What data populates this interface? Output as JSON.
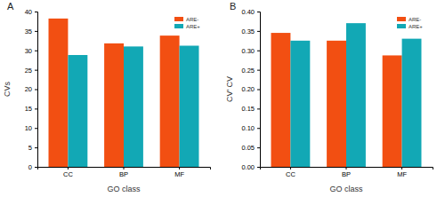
{
  "chart_data": [
    {
      "type": "bar",
      "title": "A",
      "x_label": "GO class",
      "y_label": "CVs",
      "categories": [
        "CC",
        "BP",
        "MF"
      ],
      "series": [
        {
          "name": "ARE-",
          "color": "#f24f12",
          "values": [
            38.2,
            31.8,
            33.8
          ]
        },
        {
          "name": "ARE+",
          "color": "#12a8b5",
          "values": [
            28.8,
            31.0,
            31.2
          ]
        }
      ],
      "ylim": [
        0,
        40
      ],
      "yticks": [
        0,
        5,
        10,
        15,
        20,
        25,
        30,
        35,
        40
      ],
      "legend": "upper right",
      "grid": false
    },
    {
      "type": "bar",
      "title": "B",
      "x_label": "GO class",
      "y_label": "CV' CV",
      "categories": [
        "CC",
        "BP",
        "MF"
      ],
      "series": [
        {
          "name": "ARE-",
          "color": "#f24f12",
          "values": [
            0.345,
            0.325,
            0.287
          ]
        },
        {
          "name": "ARE+",
          "color": "#12a8b5",
          "values": [
            0.325,
            0.37,
            0.33
          ]
        }
      ],
      "ylim": [
        0,
        0.4
      ],
      "yticks": [
        {
          "value": 0,
          "label": "0.00"
        },
        {
          "value": 0.05,
          "label": "0.05"
        },
        {
          "value": 0.1,
          "label": "0.10"
        },
        {
          "value": 0.15,
          "label": "0.15"
        },
        {
          "value": 0.2,
          "label": "0.20"
        },
        {
          "value": 0.25,
          "label": "0.25"
        },
        {
          "value": 0.3,
          "label": "0.30"
        },
        {
          "value": 0.35,
          "label": "0.35"
        },
        {
          "value": 0.4,
          "label": "0.40"
        }
      ],
      "legend": "upper right",
      "grid": false
    }
  ]
}
